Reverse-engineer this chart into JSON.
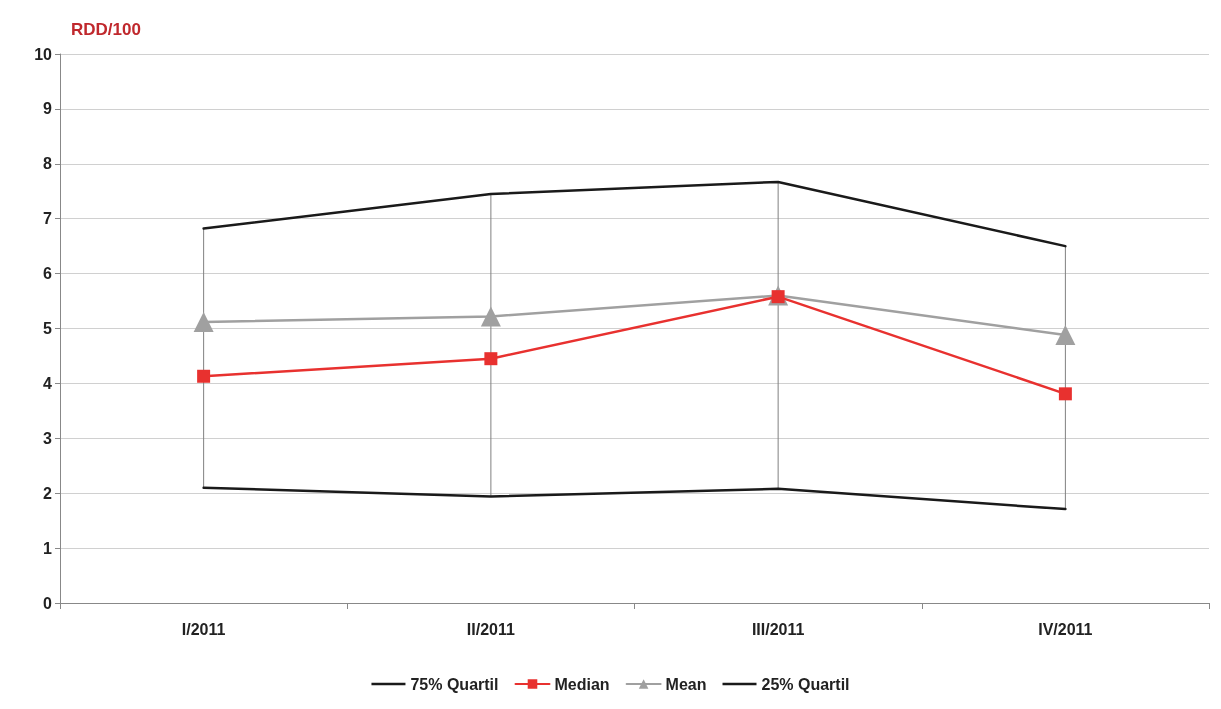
{
  "chart_data": {
    "type": "line",
    "ylabel": "RDD/100",
    "categories": [
      "I/2011",
      "II/2011",
      "III/2011",
      "IV/2011"
    ],
    "series": [
      {
        "name": "75% Quartil",
        "color": "#1a1a1a",
        "marker": "none",
        "values": [
          6.82,
          7.45,
          7.67,
          6.5
        ],
        "errors": [
          [
            2.1,
            6.82
          ],
          [
            1.94,
            7.45
          ],
          [
            2.08,
            7.67
          ],
          [
            1.71,
            6.5
          ]
        ]
      },
      {
        "name": "Median",
        "color": "#e8312f",
        "marker": "square",
        "values": [
          4.13,
          4.45,
          5.58,
          3.81
        ]
      },
      {
        "name": "Mean",
        "color": "#a0a0a0",
        "marker": "triangle",
        "values": [
          5.12,
          5.22,
          5.6,
          4.88
        ]
      },
      {
        "name": "25% Quartil",
        "color": "#1a1a1a",
        "marker": "none",
        "values": [
          2.1,
          1.94,
          2.08,
          1.71
        ]
      }
    ],
    "ylim": [
      0,
      10
    ],
    "yticks": [
      0,
      1,
      2,
      3,
      4,
      5,
      6,
      7,
      8,
      9,
      10
    ],
    "grid": "y",
    "legend": "bottom",
    "line_style": "solid"
  }
}
